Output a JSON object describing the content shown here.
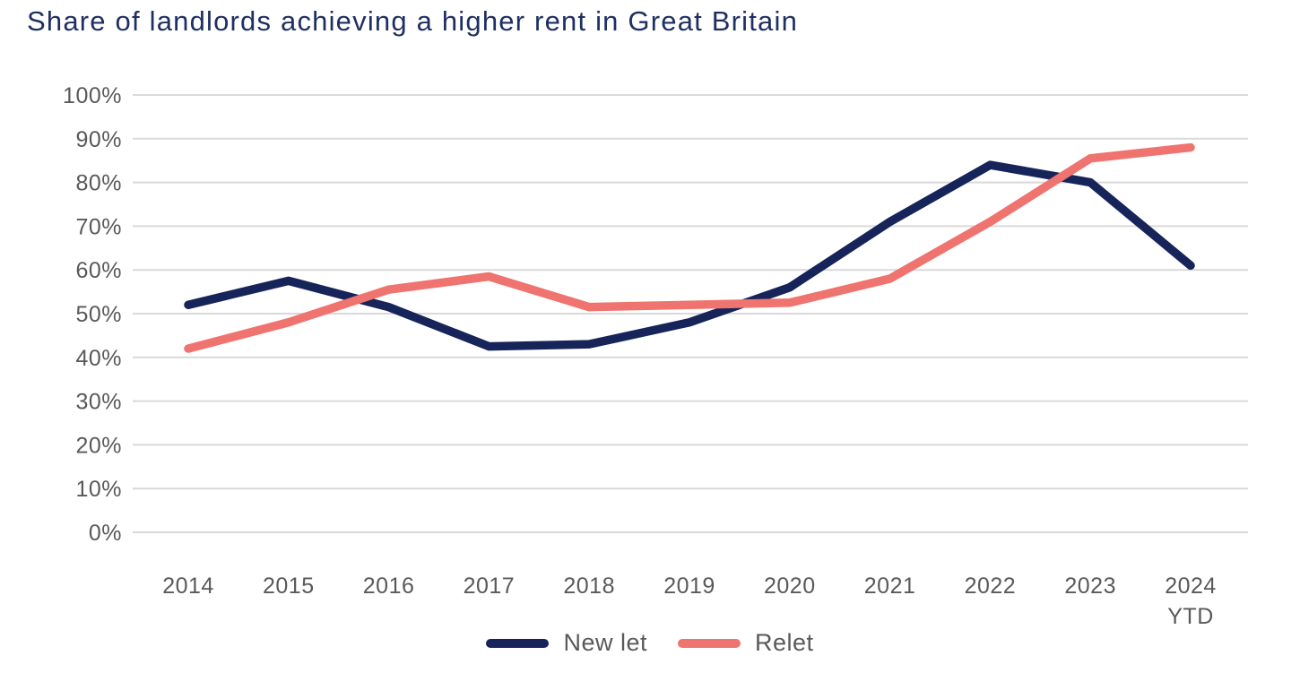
{
  "title": "Share of landlords achieving a higher rent in Great Britain",
  "colors": {
    "title_text": "#1f2f63",
    "axis_text": "#595959",
    "gridline": "#d9d9d9",
    "new_let": "#16245a",
    "relet": "#ef736e"
  },
  "chart_data": {
    "type": "line",
    "title": "Share of landlords achieving a higher rent in Great Britain",
    "categories": [
      "2014",
      "2015",
      "2016",
      "2017",
      "2018",
      "2019",
      "2020",
      "2021",
      "2022",
      "2023",
      "2024 YTD"
    ],
    "series": [
      {
        "name": "New let",
        "color": "#16245a",
        "values": [
          52,
          57.5,
          51.5,
          42.5,
          43,
          48,
          56,
          71,
          84,
          80,
          61
        ]
      },
      {
        "name": "Relet",
        "color": "#ef736e",
        "values": [
          42,
          48,
          55.5,
          58.5,
          51.5,
          52,
          52.5,
          58,
          71,
          85.5,
          88
        ]
      }
    ],
    "xlabel": "",
    "ylabel": "",
    "ylim": [
      0,
      100
    ],
    "ytick_step": 10,
    "ytick_suffix": "%",
    "grid": "horizontal",
    "legend_position": "bottom"
  }
}
